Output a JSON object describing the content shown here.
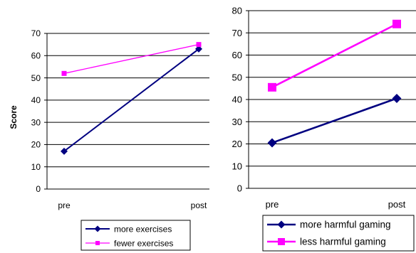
{
  "chart_data": [
    {
      "type": "line",
      "categories": [
        "pre",
        "post"
      ],
      "ylabel": "Score",
      "ylim": [
        0,
        70
      ],
      "yticks": [
        0,
        10,
        20,
        30,
        40,
        50,
        60,
        70
      ],
      "grid": true,
      "legend_position": "bottom",
      "series": [
        {
          "name": "more exercises",
          "values": [
            17,
            63
          ],
          "color": "#000080",
          "marker": "diamond"
        },
        {
          "name": "fewer exercises",
          "values": [
            52,
            65
          ],
          "color": "#ff00ff",
          "marker": "square"
        }
      ]
    },
    {
      "type": "line",
      "categories": [
        "pre",
        "post"
      ],
      "ylim": [
        0,
        80
      ],
      "yticks": [
        0,
        10,
        20,
        30,
        40,
        50,
        60,
        70,
        80
      ],
      "grid": true,
      "legend_position": "bottom",
      "series": [
        {
          "name": "more harmful gaming",
          "values": [
            20.5,
            40.5
          ],
          "color": "#000080",
          "marker": "diamond"
        },
        {
          "name": "less harmful gaming",
          "values": [
            45.5,
            74
          ],
          "color": "#ff00ff",
          "marker": "square"
        }
      ]
    }
  ]
}
